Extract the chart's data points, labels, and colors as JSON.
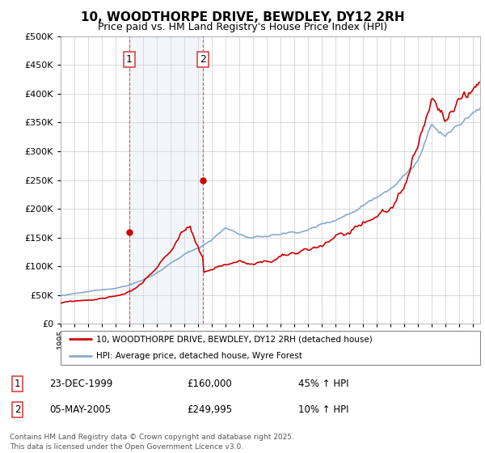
{
  "title": "10, WOODTHORPE DRIVE, BEWDLEY, DY12 2RH",
  "subtitle": "Price paid vs. HM Land Registry's House Price Index (HPI)",
  "red_label": "10, WOODTHORPE DRIVE, BEWDLEY, DY12 2RH (detached house)",
  "blue_label": "HPI: Average price, detached house, Wyre Forest",
  "purchase1_date": "23-DEC-1999",
  "purchase1_price": 160000,
  "purchase1_hpi": "45% ↑ HPI",
  "purchase2_date": "05-MAY-2005",
  "purchase2_price": 249995,
  "purchase2_hpi": "10% ↑ HPI",
  "ylim_min": 0,
  "ylim_max": 500000,
  "year_start": 1995,
  "year_end": 2025,
  "red_color": "#cc0000",
  "blue_color": "#88aacc",
  "grid_color": "#cccccc",
  "purchase1_year": 2000.0,
  "purchase2_year": 2005.35,
  "footnote": "Contains HM Land Registry data © Crown copyright and database right 2025.\nThis data is licensed under the Open Government Licence v3.0.",
  "background_color": "#ffffff",
  "vline_color": "#dd4444",
  "shade_color": "#ccddf0"
}
